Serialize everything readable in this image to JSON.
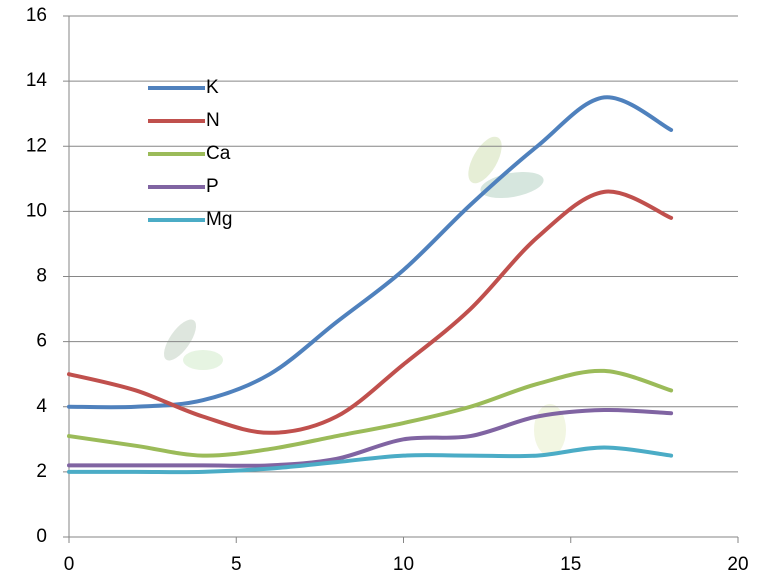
{
  "chart_data": {
    "type": "line",
    "x": [
      0,
      2,
      4,
      6,
      8,
      10,
      12,
      14,
      16,
      18
    ],
    "series": [
      {
        "name": "K",
        "color": "#4f81bd",
        "values": [
          4.0,
          4.0,
          4.2,
          5.0,
          6.6,
          8.2,
          10.2,
          12.0,
          13.5,
          12.5
        ]
      },
      {
        "name": "N",
        "color": "#c0504d",
        "values": [
          5.0,
          4.5,
          3.7,
          3.2,
          3.7,
          5.3,
          7.0,
          9.2,
          10.6,
          9.8
        ]
      },
      {
        "name": "Ca",
        "color": "#9bbb59",
        "values": [
          3.1,
          2.8,
          2.5,
          2.7,
          3.1,
          3.5,
          4.0,
          4.7,
          5.1,
          4.5
        ]
      },
      {
        "name": "P",
        "color": "#8064a2",
        "values": [
          2.2,
          2.2,
          2.2,
          2.2,
          2.4,
          3.0,
          3.1,
          3.7,
          3.9,
          3.8
        ]
      },
      {
        "name": "Mg",
        "color": "#4bacc6",
        "values": [
          2.0,
          2.0,
          2.0,
          2.1,
          2.3,
          2.5,
          2.5,
          2.5,
          2.75,
          2.5
        ]
      }
    ],
    "xlim": [
      0,
      20
    ],
    "xticks": [
      0,
      5,
      10,
      15,
      20
    ],
    "ylim": [
      0,
      16
    ],
    "yticks": [
      0,
      2,
      4,
      6,
      8,
      10,
      12,
      14,
      16
    ],
    "grid": true,
    "legend": "upper-left"
  }
}
